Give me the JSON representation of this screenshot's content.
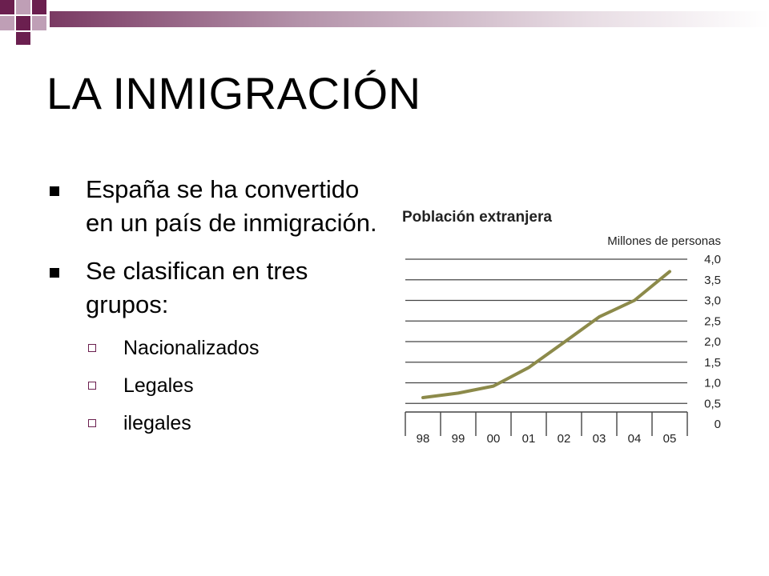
{
  "slide": {
    "title": "LA INMIGRACIÓN",
    "bullets": [
      {
        "text": "España se ha convertido en un país de inmigración."
      },
      {
        "text": "Se clasifican en tres grupos:"
      }
    ],
    "sub_bullets": [
      {
        "text": "Nacionalizados"
      },
      {
        "text": "Legales"
      },
      {
        "text": "ilegales"
      }
    ]
  },
  "colors": {
    "accent_dark": "#6b1f4f",
    "accent_light": "#bf9fb6",
    "line": "#8c8a4a",
    "grid": "#444444"
  },
  "chart_data": {
    "type": "line",
    "title": "Población extranjera",
    "ylabel": "Millones de personas",
    "categories": [
      "98",
      "99",
      "00",
      "01",
      "02",
      "03",
      "04",
      "05"
    ],
    "values": [
      0.64,
      0.75,
      0.92,
      1.37,
      1.98,
      2.6,
      3.0,
      3.7
    ],
    "y_ticks": [
      "0",
      "0,5",
      "1,0",
      "1,5",
      "2,0",
      "2,5",
      "3,0",
      "3,5",
      "4,0"
    ],
    "ylim": [
      0,
      4.0
    ],
    "y_axis_position": "right",
    "grid": true
  }
}
